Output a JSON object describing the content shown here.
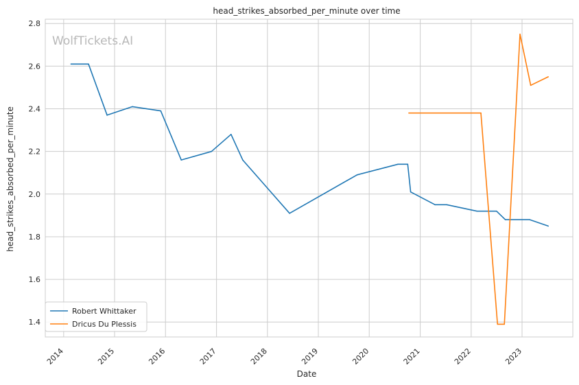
{
  "chart_data": {
    "type": "line",
    "title": "head_strikes_absorbed_per_minute over time",
    "xlabel": "Date",
    "ylabel": "head_strikes_absorbed_per_minute",
    "watermark": "WolfTickets.AI",
    "x_ticks": [
      "2014",
      "2015",
      "2016",
      "2017",
      "2018",
      "2019",
      "2020",
      "2021",
      "2022",
      "2023"
    ],
    "y_ticks": [
      "1.4",
      "1.6",
      "1.8",
      "2.0",
      "2.2",
      "2.4",
      "2.6",
      "2.8"
    ],
    "xlim": [
      "2013-08-22",
      "2023-12-31"
    ],
    "ylim": [
      1.33,
      2.82
    ],
    "grid": true,
    "legend_position": "lower-left",
    "series": [
      {
        "name": "Robert Whittaker",
        "color": "#1f77b4",
        "points": [
          [
            "2014-02-22",
            2.61
          ],
          [
            "2014-06-28",
            2.61
          ],
          [
            "2014-11-08",
            2.37
          ],
          [
            "2015-05-09",
            2.41
          ],
          [
            "2015-11-28",
            2.39
          ],
          [
            "2016-04-23",
            2.16
          ],
          [
            "2016-11-26",
            2.2
          ],
          [
            "2017-04-15",
            2.28
          ],
          [
            "2017-07-08",
            2.16
          ],
          [
            "2018-06-09",
            1.91
          ],
          [
            "2019-10-06",
            2.09
          ],
          [
            "2020-07-25",
            2.14
          ],
          [
            "2020-10-03",
            2.14
          ],
          [
            "2020-10-24",
            2.01
          ],
          [
            "2021-04-17",
            1.95
          ],
          [
            "2021-07-10",
            1.95
          ],
          [
            "2022-02-12",
            1.92
          ],
          [
            "2022-07-02",
            1.92
          ],
          [
            "2022-09-03",
            1.88
          ],
          [
            "2023-02-25",
            1.88
          ],
          [
            "2023-07-08",
            1.85
          ]
        ]
      },
      {
        "name": "Dricus Du Plessis",
        "color": "#ff7f0e",
        "points": [
          [
            "2020-10-11",
            2.38
          ],
          [
            "2022-03-12",
            2.38
          ],
          [
            "2022-07-09",
            1.39
          ],
          [
            "2022-08-27",
            1.39
          ],
          [
            "2022-12-17",
            2.75
          ],
          [
            "2023-03-04",
            2.51
          ],
          [
            "2023-07-08",
            2.55
          ]
        ]
      }
    ]
  }
}
